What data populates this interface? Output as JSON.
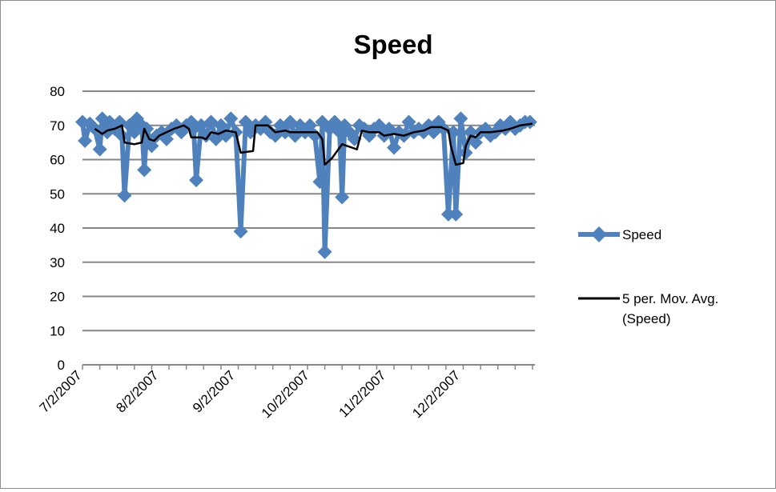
{
  "chart_data": {
    "type": "line",
    "title": "Speed",
    "xlabel": "",
    "ylabel": "",
    "ylim": [
      0,
      80
    ],
    "y_ticks": [
      0,
      10,
      20,
      30,
      40,
      50,
      60,
      70,
      80
    ],
    "x_tick_labels": [
      "7/2/2007",
      "8/2/2007",
      "9/2/2007",
      "10/2/2007",
      "11/2/2007",
      "12/2/2007"
    ],
    "x_tick_dates": [
      "2007-07-02",
      "2007-08-02",
      "2007-09-02",
      "2007-10-02",
      "2007-11-02",
      "2007-12-02"
    ],
    "xlim": [
      "2007-07-02",
      "2008-01-01"
    ],
    "grid": "horizontal",
    "legend_position": "right",
    "series": [
      {
        "name": "Speed",
        "color": "#4F81BD",
        "marker": "diamond",
        "points": [
          [
            "2007-07-02",
            71
          ],
          [
            "2007-07-03",
            65.5
          ],
          [
            "2007-07-05",
            70.5
          ],
          [
            "2007-07-07",
            69
          ],
          [
            "2007-07-09",
            63
          ],
          [
            "2007-07-10",
            72
          ],
          [
            "2007-07-12",
            68
          ],
          [
            "2007-07-13",
            71
          ],
          [
            "2007-07-15",
            69
          ],
          [
            "2007-07-17",
            71
          ],
          [
            "2007-07-18",
            67
          ],
          [
            "2007-07-19",
            49.5
          ],
          [
            "2007-07-21",
            70
          ],
          [
            "2007-07-23",
            68
          ],
          [
            "2007-07-24",
            72
          ],
          [
            "2007-07-26",
            70
          ],
          [
            "2007-07-27",
            57
          ],
          [
            "2007-07-28",
            69
          ],
          [
            "2007-07-30",
            64
          ],
          [
            "2007-08-01",
            67
          ],
          [
            "2007-08-03",
            68
          ],
          [
            "2007-08-05",
            66
          ],
          [
            "2007-08-07",
            69
          ],
          [
            "2007-08-09",
            70
          ],
          [
            "2007-08-11",
            68
          ],
          [
            "2007-08-13",
            70
          ],
          [
            "2007-08-15",
            71
          ],
          [
            "2007-08-16",
            69
          ],
          [
            "2007-08-17",
            54
          ],
          [
            "2007-08-19",
            70
          ],
          [
            "2007-08-21",
            67
          ],
          [
            "2007-08-23",
            71
          ],
          [
            "2007-08-25",
            66
          ],
          [
            "2007-08-27",
            70
          ],
          [
            "2007-08-29",
            67
          ],
          [
            "2007-08-31",
            72
          ],
          [
            "2007-09-02",
            68
          ],
          [
            "2007-09-04",
            39
          ],
          [
            "2007-09-06",
            71
          ],
          [
            "2007-09-08",
            68
          ],
          [
            "2007-09-10",
            70
          ],
          [
            "2007-09-12",
            69
          ],
          [
            "2007-09-14",
            71
          ],
          [
            "2007-09-16",
            68
          ],
          [
            "2007-09-18",
            67
          ],
          [
            "2007-09-20",
            70
          ],
          [
            "2007-09-22",
            68
          ],
          [
            "2007-09-24",
            71
          ],
          [
            "2007-09-26",
            67
          ],
          [
            "2007-09-28",
            70
          ],
          [
            "2007-09-30",
            68
          ],
          [
            "2007-10-02",
            70
          ],
          [
            "2007-10-04",
            67
          ],
          [
            "2007-10-06",
            53.5
          ],
          [
            "2007-10-07",
            71
          ],
          [
            "2007-10-08",
            33
          ],
          [
            "2007-10-10",
            69
          ],
          [
            "2007-10-12",
            71
          ],
          [
            "2007-10-14",
            68
          ],
          [
            "2007-10-15",
            49
          ],
          [
            "2007-10-16",
            70
          ],
          [
            "2007-10-18",
            68
          ],
          [
            "2007-10-20",
            66
          ],
          [
            "2007-10-22",
            70
          ],
          [
            "2007-10-24",
            69
          ],
          [
            "2007-10-26",
            67
          ],
          [
            "2007-10-28",
            69
          ],
          [
            "2007-10-30",
            70
          ],
          [
            "2007-11-01",
            67
          ],
          [
            "2007-11-03",
            69
          ],
          [
            "2007-11-05",
            63.5
          ],
          [
            "2007-11-07",
            68
          ],
          [
            "2007-11-09",
            67
          ],
          [
            "2007-11-11",
            71
          ],
          [
            "2007-11-13",
            68
          ],
          [
            "2007-11-15",
            69
          ],
          [
            "2007-11-17",
            68
          ],
          [
            "2007-11-19",
            70
          ],
          [
            "2007-11-21",
            68
          ],
          [
            "2007-11-23",
            71
          ],
          [
            "2007-11-25",
            69
          ],
          [
            "2007-11-27",
            44
          ],
          [
            "2007-11-29",
            68
          ],
          [
            "2007-11-30",
            44
          ],
          [
            "2007-12-02",
            72
          ],
          [
            "2007-12-04",
            62
          ],
          [
            "2007-12-06",
            68
          ],
          [
            "2007-12-08",
            65
          ],
          [
            "2007-12-10",
            68
          ],
          [
            "2007-12-12",
            69
          ],
          [
            "2007-12-14",
            67
          ],
          [
            "2007-12-16",
            68
          ],
          [
            "2007-12-18",
            70
          ],
          [
            "2007-12-20",
            69
          ],
          [
            "2007-12-22",
            71
          ],
          [
            "2007-12-24",
            69
          ],
          [
            "2007-12-26",
            70
          ],
          [
            "2007-12-28",
            71
          ],
          [
            "2007-12-30",
            71
          ]
        ]
      },
      {
        "name": "5 per. Mov. Avg. (Speed)",
        "color": "#000000",
        "marker": "none",
        "points": [
          [
            "2007-07-07",
            69
          ],
          [
            "2007-07-09",
            68
          ],
          [
            "2007-07-10",
            67.5
          ],
          [
            "2007-07-12",
            68.5
          ],
          [
            "2007-07-15",
            69
          ],
          [
            "2007-07-18",
            70
          ],
          [
            "2007-07-19",
            65
          ],
          [
            "2007-07-23",
            64.5
          ],
          [
            "2007-07-26",
            65
          ],
          [
            "2007-07-27",
            69
          ],
          [
            "2007-07-29",
            66
          ],
          [
            "2007-07-31",
            65.5
          ],
          [
            "2007-08-02",
            67
          ],
          [
            "2007-08-05",
            68
          ],
          [
            "2007-08-08",
            69
          ],
          [
            "2007-08-12",
            70
          ],
          [
            "2007-08-14",
            69
          ],
          [
            "2007-08-15",
            66.5
          ],
          [
            "2007-08-19",
            66.5
          ],
          [
            "2007-08-21",
            66
          ],
          [
            "2007-08-23",
            68
          ],
          [
            "2007-08-26",
            67.5
          ],
          [
            "2007-08-29",
            68.5
          ],
          [
            "2007-09-02",
            68
          ],
          [
            "2007-09-04",
            62
          ],
          [
            "2007-09-09",
            62.5
          ],
          [
            "2007-09-10",
            70
          ],
          [
            "2007-09-15",
            70
          ],
          [
            "2007-09-18",
            68
          ],
          [
            "2007-09-22",
            68.5
          ],
          [
            "2007-09-24",
            68
          ],
          [
            "2007-09-29",
            68
          ],
          [
            "2007-10-02",
            68
          ],
          [
            "2007-10-05",
            68
          ],
          [
            "2007-10-07",
            66
          ],
          [
            "2007-10-08",
            58.5
          ],
          [
            "2007-10-11",
            60.5
          ],
          [
            "2007-10-13",
            62.5
          ],
          [
            "2007-10-15",
            64.5
          ],
          [
            "2007-10-17",
            64
          ],
          [
            "2007-10-19",
            63.5
          ],
          [
            "2007-10-21",
            63
          ],
          [
            "2007-10-23",
            68.5
          ],
          [
            "2007-10-26",
            68
          ],
          [
            "2007-10-30",
            68
          ],
          [
            "2007-11-01",
            67
          ],
          [
            "2007-11-05",
            67.5
          ],
          [
            "2007-11-09",
            67
          ],
          [
            "2007-11-13",
            68
          ],
          [
            "2007-11-17",
            68.5
          ],
          [
            "2007-11-20",
            69.5
          ],
          [
            "2007-11-24",
            69.5
          ],
          [
            "2007-11-27",
            68.5
          ],
          [
            "2007-11-28",
            64
          ],
          [
            "2007-11-30",
            58.5
          ],
          [
            "2007-12-03",
            59
          ],
          [
            "2007-12-04",
            64
          ],
          [
            "2007-12-06",
            67
          ],
          [
            "2007-12-08",
            66.5
          ],
          [
            "2007-12-10",
            68
          ],
          [
            "2007-12-14",
            68
          ],
          [
            "2007-12-19",
            68.5
          ],
          [
            "2007-12-22",
            69
          ],
          [
            "2007-12-26",
            70
          ],
          [
            "2007-12-31",
            70.5
          ]
        ]
      }
    ]
  }
}
